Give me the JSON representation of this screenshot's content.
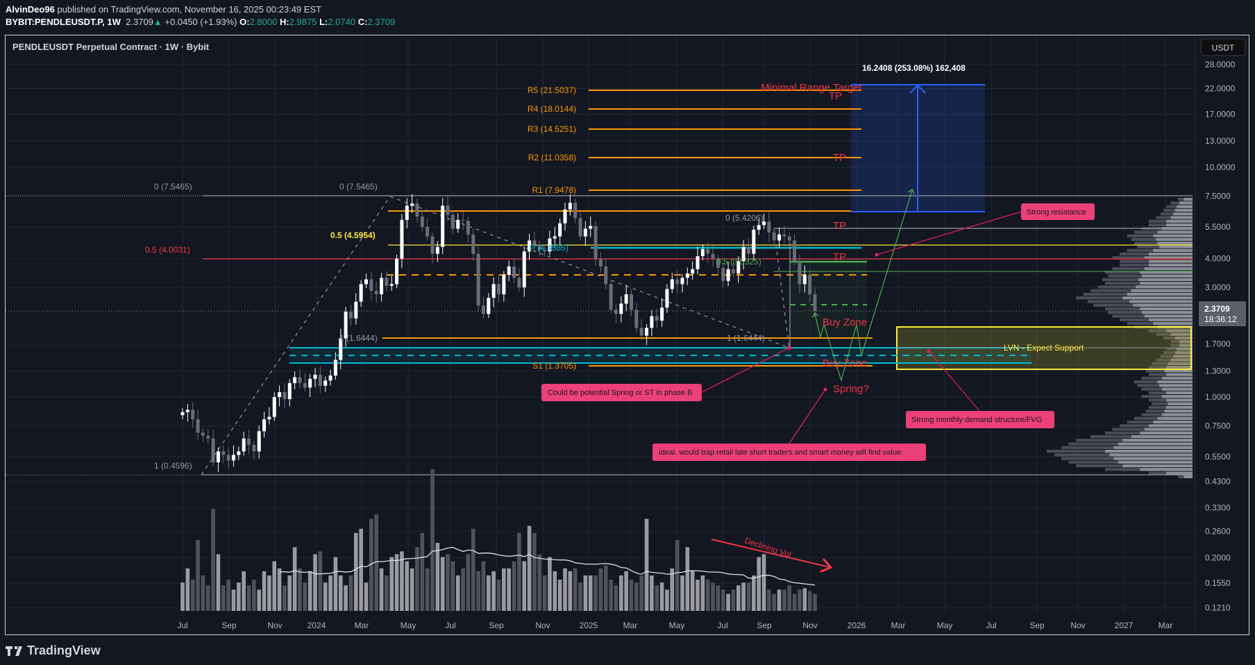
{
  "header": {
    "author": "AlvinDeo96",
    "published": "published on TradingView.com, November 16, 2025 00:23:49 EST",
    "symbol": "BYBIT:PENDLEUSDT.P, 1W",
    "last": "2.3709",
    "change": "+0.0450 (+1.93%)",
    "o_label": "O:",
    "o": "2.8000",
    "h_label": "H:",
    "h": "2.9875",
    "l_label": "L:",
    "l": "2.0740",
    "c_label": "C:",
    "c": "2.3709"
  },
  "chart_title": "PENDLEUSDT Perpetual Contract · 1W · Bybit",
  "currency_button": "USDT",
  "price_axis": [
    "28.0000",
    "22.0000",
    "17.0000",
    "13.0000",
    "10.0000",
    "7.5000",
    "5.5000",
    "4.0000",
    "3.0000",
    "1.7000",
    "1.3000",
    "1.0000",
    "0.7500",
    "0.5500",
    "0.4300",
    "0.3300",
    "0.2600",
    "0.2000",
    "0.1550",
    "0.1210"
  ],
  "current_price": {
    "value": "2.3709",
    "countdown": "18:36:12"
  },
  "time_axis": [
    "Jul",
    "Sep",
    "Nov",
    "2024",
    "Mar",
    "May",
    "Jul",
    "Sep",
    "Nov",
    "2025",
    "Mar",
    "May",
    "Jul",
    "Sep",
    "Nov",
    "2026",
    "Mar",
    "May",
    "Jul",
    "Sep",
    "Nov",
    "2027",
    "Mar"
  ],
  "levels": {
    "r5": "R5 (21.5037)",
    "r4": "R4 (18.0144)",
    "r3": "R3 (14.5251)",
    "r2": "R2 (11.0358)",
    "r1": "R1 (7.9478)",
    "s1": "S1 (1.3705)",
    "fib_top_left": "0 (7.5465)",
    "fib_top": "0 (7.5465)",
    "fib_mid_red": "0.5 (4.0031)",
    "fib_mid_yellow": "0.5 (4.5954)",
    "fib_one": "1 (1.6444)",
    "fib_one_b": "1 (1.6444)",
    "fib_bottom": "1 (0.4596)",
    "fib_recent_top": "0 (5.4206)",
    "fib_recent_mid": "0.5 (3.5325)",
    "pivot_p": "P (4.4585)"
  },
  "annotations": {
    "measure": "16.2408 (253.08%) 162,408",
    "minimal_range_target": "Minimal Range Target",
    "tp": "TP",
    "buy_zone": "Buy Zone",
    "spring": "Spring?",
    "lvn": "LVN - Expect Support",
    "strong_resistance": "Strong resistance",
    "strong_demand": "Strong monthly demand structure/FVG",
    "could_be_spring": "Could be potential Spring or ST in phase B",
    "ideal": "ideal. would trap retail late short traders and smart money will find value",
    "declining_vol": "Declining Vol"
  },
  "colors": {
    "up": "#ffffff",
    "down": "#6a6d78",
    "orange": "#ff9800",
    "cyan": "#00bcd4",
    "red": "#f23645",
    "yellow": "#ffeb3b",
    "green": "#4caf50",
    "blue": "#2962ff",
    "note": "#e91e63"
  },
  "chart_data": {
    "type": "candlestick",
    "interval": "1W",
    "scale": "log",
    "closes": [
      0.86,
      0.88,
      0.8,
      0.7,
      0.68,
      0.66,
      0.52,
      0.58,
      0.56,
      0.53,
      0.56,
      0.58,
      0.66,
      0.62,
      0.58,
      0.71,
      0.8,
      0.82,
      1.0,
      1.05,
      0.98,
      1.15,
      1.22,
      1.15,
      1.1,
      1.2,
      1.25,
      1.12,
      1.18,
      1.24,
      1.45,
      1.8,
      2.35,
      2.2,
      2.6,
      3.1,
      3.25,
      2.9,
      2.8,
      3.3,
      3.05,
      3.1,
      4.0,
      5.9,
      6.8,
      6.95,
      6.1,
      5.5,
      5.0,
      4.2,
      4.5,
      6.8,
      6.2,
      5.4,
      5.9,
      5.85,
      5.1,
      4.2,
      2.5,
      2.3,
      2.7,
      3.1,
      2.8,
      3.4,
      3.7,
      3.3,
      3.0,
      4.3,
      4.8,
      4.6,
      4.35,
      4.3,
      4.9,
      5.0,
      5.7,
      6.55,
      7.0,
      6.0,
      5.0,
      5.4,
      5.55,
      4.0,
      3.7,
      3.1,
      2.4,
      2.3,
      2.55,
      2.8,
      2.4,
      2.0,
      1.85,
      2.0,
      2.25,
      2.15,
      2.45,
      2.95,
      3.25,
      3.1,
      3.3,
      3.45,
      3.6,
      4.1,
      4.4,
      4.2,
      4.0,
      3.65,
      3.2,
      3.6,
      3.45,
      3.9,
      4.5,
      4.2,
      5.35,
      5.6,
      5.8,
      5.2,
      4.8,
      5.1,
      5.0,
      4.8,
      3.9,
      3.1,
      3.4,
      2.8,
      2.3709
    ],
    "volume_relative": [
      20,
      30,
      22,
      50,
      25,
      18,
      72,
      40,
      18,
      22,
      15,
      20,
      28,
      18,
      22,
      15,
      28,
      25,
      35,
      30,
      18,
      25,
      45,
      30,
      20,
      28,
      40,
      42,
      20,
      25,
      38,
      25,
      18,
      25,
      55,
      58,
      20,
      65,
      68,
      30,
      25,
      38,
      40,
      42,
      35,
      30,
      45,
      55,
      30,
      100,
      48,
      38,
      40,
      35,
      25,
      30,
      40,
      58,
      28,
      35,
      25,
      28,
      22,
      30,
      30,
      35,
      55,
      35,
      60,
      55,
      40,
      25,
      38,
      28,
      22,
      30,
      28,
      30,
      20,
      25,
      25,
      25,
      30,
      32,
      22,
      18,
      25,
      28,
      22,
      20,
      25,
      65,
      25,
      18,
      20,
      15,
      30,
      50,
      25,
      45,
      28,
      22,
      25,
      22,
      20,
      18,
      15,
      12,
      15,
      18,
      20,
      20,
      25,
      38,
      40,
      15,
      12,
      15,
      15,
      18,
      12,
      15,
      16,
      14,
      12
    ],
    "volume_profile_relative": [
      0.1,
      0.15,
      0.18,
      0.2,
      0.22,
      0.25,
      0.3,
      0.3,
      0.35,
      0.4,
      0.45,
      0.42,
      0.4,
      0.38,
      0.45,
      0.5,
      0.55,
      0.5,
      0.5,
      0.55,
      0.6,
      0.58,
      0.62,
      0.6,
      0.65,
      0.7,
      0.75,
      0.8,
      0.72,
      0.68,
      0.6,
      0.58,
      0.55,
      0.5,
      0.45,
      0.4,
      0.3,
      0.25,
      0.2,
      0.15,
      0.15,
      0.18,
      0.2,
      0.22,
      0.25,
      0.28,
      0.3,
      0.32,
      0.3,
      0.35,
      0.4,
      0.38,
      0.35,
      0.3,
      0.35,
      0.3,
      0.28,
      0.3,
      0.32,
      0.35,
      0.4,
      0.45,
      0.5,
      0.55,
      0.6,
      0.7,
      0.8,
      0.85,
      0.9,
      1.0,
      0.95,
      0.9,
      0.85,
      0.8,
      0.6,
      0.3,
      0.1
    ],
    "volume_ma_period": 20
  }
}
